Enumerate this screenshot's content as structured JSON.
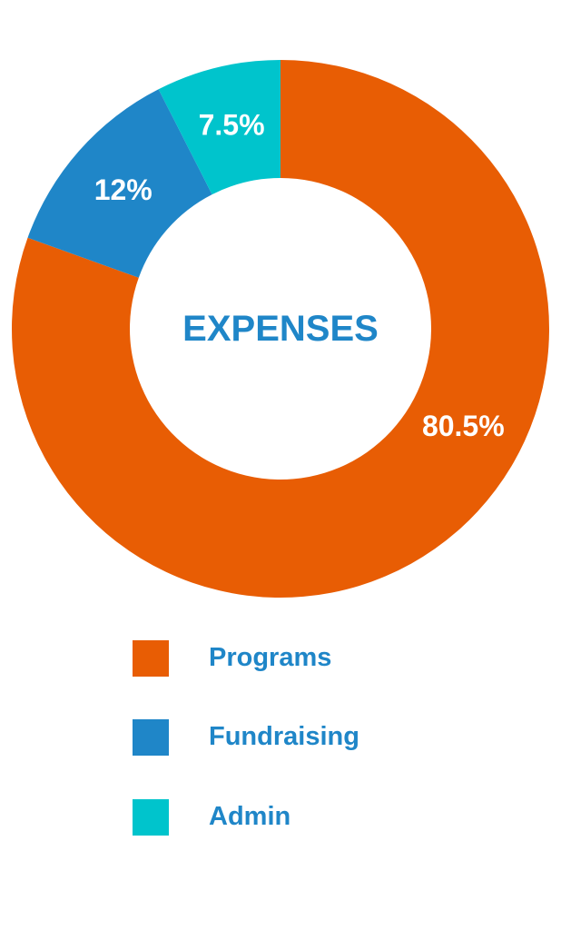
{
  "chart_data": {
    "type": "pie",
    "title": "EXPENSES",
    "categories": [
      "Programs",
      "Fundraising",
      "Admin"
    ],
    "values": [
      80.5,
      12,
      7.5
    ],
    "labels": [
      "80.5%",
      "12%",
      "7.5%"
    ],
    "colors": [
      "#e85d04",
      "#1f86c8",
      "#00c4cc"
    ],
    "legend_position": "bottom",
    "donut": true,
    "start_angle_deg": 0,
    "direction": "clockwise"
  },
  "colors": {
    "title": "#1f86c8",
    "label_text": "#ffffff",
    "legend_text": "#1f86c8"
  }
}
